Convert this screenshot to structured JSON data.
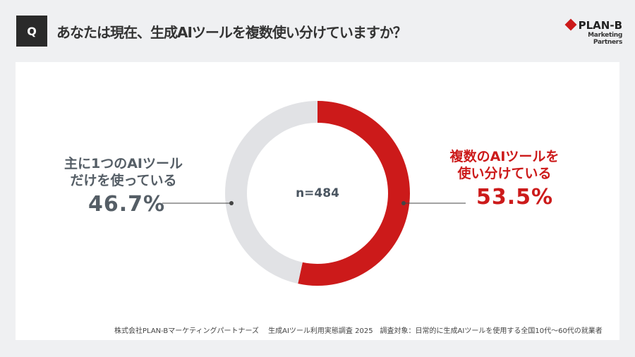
{
  "question_mark": "Q",
  "title": "あなたは現在、生成AIツールを複数使い分けていますか？",
  "logo": {
    "main": "PLAN-B",
    "sub": "Marketing Partners"
  },
  "chart_data": {
    "type": "pie",
    "donut": true,
    "center_label": "n=484",
    "slices": [
      {
        "label_line1": "複数のAIツールを",
        "label_line2": "使い分けている",
        "value": 53.5,
        "value_label": "53.5%",
        "color": "#cc1a1a"
      },
      {
        "label_line1": "主に1つのAIツール",
        "label_line2": "だけを使っている",
        "value": 46.7,
        "value_label": "46.7%",
        "color": "#e1e2e5"
      }
    ]
  },
  "footer": "株式会社PLAN-Bマーケティングパートナーズ　 生成AIツール利用実態調査 2025　調査対象：日常的に生成AIツールを使用する全国10代〜60代の就業者"
}
